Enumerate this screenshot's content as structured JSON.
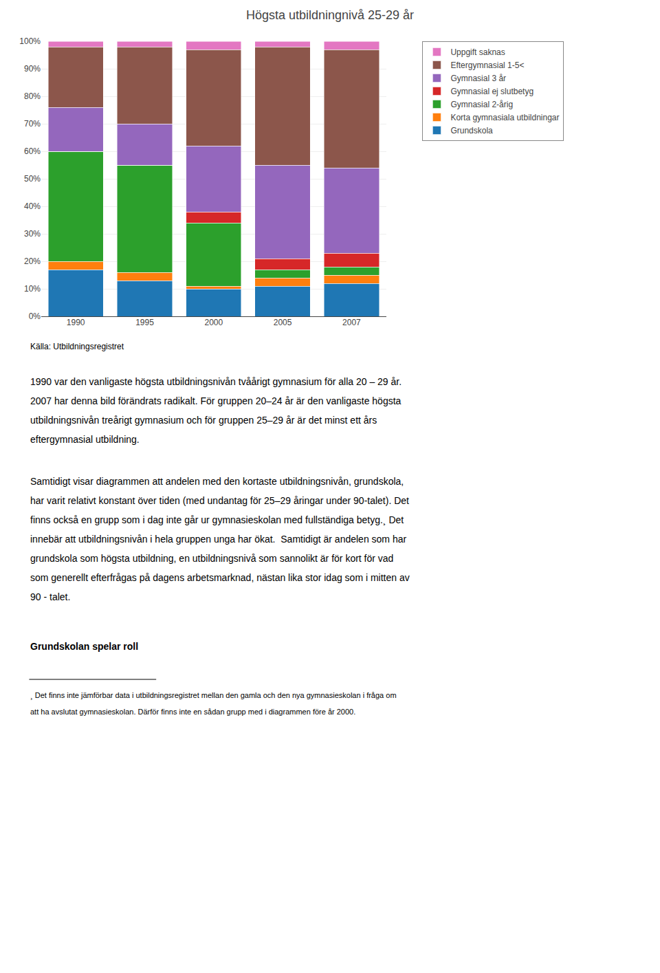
{
  "chart_data": {
    "type": "bar",
    "title": "Högsta utbildningnivå 25-29 år",
    "stacked": true,
    "categories": [
      "1990",
      "1995",
      "2000",
      "2005",
      "2007"
    ],
    "series": [
      {
        "name": "Grundskola",
        "values": [
          17,
          13,
          10,
          11,
          12
        ]
      },
      {
        "name": "Korta gymnasiala utbildningar",
        "values": [
          3,
          3,
          1,
          3,
          3
        ]
      },
      {
        "name": "Gymnasial 2-årig",
        "values": [
          40,
          39,
          23,
          3,
          3
        ]
      },
      {
        "name": "Gymnasial ej slutbetyg",
        "values": [
          0,
          0,
          4,
          4,
          5
        ]
      },
      {
        "name": "Gymnasial 3 år",
        "values": [
          16,
          15,
          24,
          34,
          31
        ]
      },
      {
        "name": "Eftergymnasial 1-5<",
        "values": [
          22,
          28,
          35,
          43,
          43
        ]
      },
      {
        "name": "Uppgift saknas",
        "values": [
          2,
          2,
          3,
          2,
          3
        ]
      }
    ],
    "ylim": [
      0,
      100
    ],
    "yticks": [
      {
        "value": 0,
        "label": "0%"
      },
      {
        "value": 10,
        "label": "10%"
      },
      {
        "value": 20,
        "label": "20%"
      },
      {
        "value": 30,
        "label": "30%"
      },
      {
        "value": 40,
        "label": "40%"
      },
      {
        "value": 50,
        "label": "50%"
      },
      {
        "value": 60,
        "label": "60%"
      },
      {
        "value": 70,
        "label": "70%"
      },
      {
        "value": 80,
        "label": "80%"
      },
      {
        "value": 90,
        "label": "90%"
      },
      {
        "value": 100,
        "label": "100%"
      }
    ],
    "grid": true,
    "legend": "right",
    "annotations": [
      "Källa: Utbildningsregistret",
      "1990 var den vanligaste högsta utbildningsnivån tvåårigt gymnasium för alla 20 – 29 år.",
      "2007 har denna bild förändrats radikalt. För gruppen 20–24 år är den vanligaste högsta",
      "utbildningsnivån treårigt gymnasium och för gruppen 25–29 år är det minst ett års",
      "eftergymnasial utbildning.",
      "Samtidigt visar diagrammen att andelen med den kortaste utbildningsnivån, grundskola,",
      "har varit relativt konstant över tiden (med undantag för 25–29 åringar under 90-talet). Det",
      "finns också en grupp som i dag inte går ur gymnasieskolan med fullständiga betyg.¸ Det",
      "innebär att utbildningsnivån i hela gruppen unga har ökat.  Samtidigt är andelen som har",
      "grundskola som högsta utbildning, en utbildningsnivå som sannolikt är för kort för vad",
      "som generellt efterfrågas på dagens arbetsmarknad, nästan lika stor idag som i mitten av",
      "90 - talet.",
      "Grundskolan spelar roll",
      "¸ Det finns inte jämförbar data i utbildningsregistret mellan den gamla och den nya gymnasieskolan i fråga om",
      "att ha avslutat gymnasieskolan. Därför finns inte en sådan grupp med i diagrammen före år 2000."
    ]
  }
}
